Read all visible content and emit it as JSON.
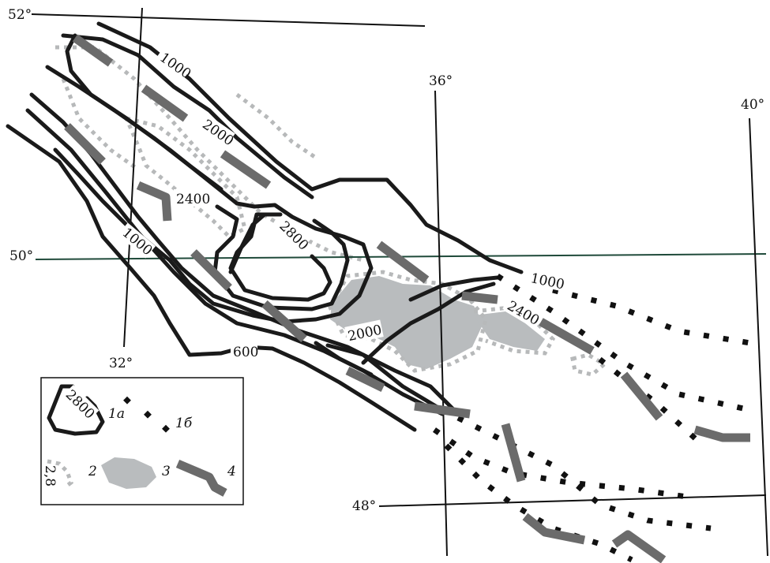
{
  "lat_labels": {
    "lat52": "52°",
    "lat50": "50°",
    "lat48": "48°"
  },
  "lon_labels": {
    "lon32": "32°",
    "lon36": "36°",
    "lon40": "40°"
  },
  "contour_labels": {
    "c1000a": "1000",
    "c2000a": "2000",
    "c2400a": "2400",
    "c2800": "2800",
    "c1000b": "1000",
    "c2000b": "2000",
    "c600": "600",
    "c1000c": "1000",
    "c2400b": "2400"
  },
  "legend": {
    "contour_value": "2800",
    "item_1a": "1а",
    "item_1b": "1б",
    "item_2": "2",
    "item_2_value": "2,8",
    "item_3": "3",
    "item_4": "4"
  },
  "colors": {
    "contour": "#1a1a1a",
    "grey_dots": "#b7b9ba",
    "grey_area": "#b9bcbe",
    "zone_strokes": "#6b6b6b",
    "lat50_line": "#1f4a3a"
  }
}
